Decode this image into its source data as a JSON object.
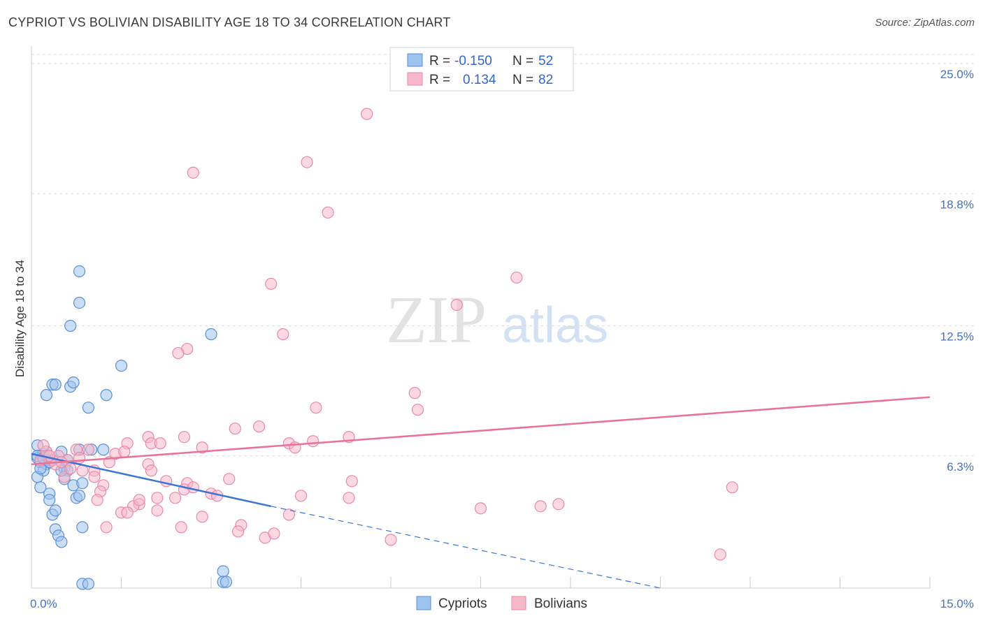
{
  "title": "CYPRIOT VS BOLIVIAN DISABILITY AGE 18 TO 34 CORRELATION CHART",
  "source": "Source: ZipAtlas.com",
  "watermark": {
    "zip": "ZIP",
    "atlas": "atlas"
  },
  "legend": {
    "rows": [
      {
        "r_label": "R =",
        "r_value": "-0.150",
        "n_label": "N =",
        "n_value": "52",
        "color": "#9ec3ee",
        "stroke": "#5b8fd6"
      },
      {
        "r_label": "R =",
        "r_value": "0.134",
        "n_label": "N =",
        "n_value": "82",
        "color": "#f7b8cb",
        "stroke": "#e88aa6"
      }
    ]
  },
  "bottom_legend": [
    {
      "label": "Cypriots",
      "color": "#9ec3ee",
      "stroke": "#5b8fd6"
    },
    {
      "label": "Bolivians",
      "color": "#f7b8cb",
      "stroke": "#e88aa6"
    }
  ],
  "chart_data": {
    "type": "scatter",
    "title": "CYPRIOT VS BOLIVIAN DISABILITY AGE 18 TO 34 CORRELATION CHART",
    "xlabel": "",
    "ylabel": "Disability Age 18 to 34",
    "xlim": [
      0,
      15
    ],
    "ylim": [
      0,
      25.7
    ],
    "x_tick_labels": [
      {
        "v": 0,
        "label": "0.0%"
      },
      {
        "v": 15,
        "label": "15.0%"
      }
    ],
    "y_tick_labels": [
      {
        "v": 6.3,
        "label": "6.3%"
      },
      {
        "v": 12.5,
        "label": "12.5%"
      },
      {
        "v": 18.8,
        "label": "18.8%"
      },
      {
        "v": 25.0,
        "label": "25.0%"
      }
    ],
    "series": [
      {
        "name": "Cypriots",
        "color": "#9ec3ee",
        "stroke": "#5b8fd6",
        "trend": {
          "x0": 0,
          "y0": 6.4,
          "x1": 4.0,
          "y1": 3.9,
          "dash_to_x": 10.5,
          "dash_to_y": -0.2
        },
        "points": [
          [
            0.1,
            6.8
          ],
          [
            0.1,
            6.2
          ],
          [
            0.15,
            6.0
          ],
          [
            0.2,
            6.4
          ],
          [
            0.3,
            6.1
          ],
          [
            0.25,
            5.9
          ],
          [
            0.2,
            5.6
          ],
          [
            0.1,
            5.3
          ],
          [
            0.15,
            4.8
          ],
          [
            0.3,
            4.5
          ],
          [
            0.3,
            4.2
          ],
          [
            0.35,
            3.5
          ],
          [
            0.4,
            3.7
          ],
          [
            0.4,
            2.8
          ],
          [
            0.45,
            2.5
          ],
          [
            0.5,
            2.2
          ],
          [
            0.5,
            6.5
          ],
          [
            0.55,
            5.7
          ],
          [
            0.6,
            5.6
          ],
          [
            0.55,
            5.2
          ],
          [
            0.6,
            6.1
          ],
          [
            0.8,
            6.6
          ],
          [
            0.7,
            4.9
          ],
          [
            0.75,
            4.3
          ],
          [
            0.8,
            4.4
          ],
          [
            0.85,
            5.0
          ],
          [
            1.0,
            6.6
          ],
          [
            0.85,
            2.9
          ],
          [
            1.2,
            6.6
          ],
          [
            0.8,
            13.6
          ],
          [
            0.8,
            15.1
          ],
          [
            0.65,
            12.5
          ],
          [
            0.65,
            9.6
          ],
          [
            0.7,
            9.8
          ],
          [
            0.35,
            9.7
          ],
          [
            0.4,
            9.7
          ],
          [
            0.25,
            9.2
          ],
          [
            1.25,
            9.2
          ],
          [
            0.95,
            8.6
          ],
          [
            1.5,
            10.6
          ],
          [
            3.0,
            12.1
          ],
          [
            3.2,
            0.8
          ],
          [
            3.2,
            0.3
          ],
          [
            3.25,
            0.3
          ],
          [
            0.85,
            0.2
          ],
          [
            0.95,
            0.2
          ],
          [
            0.1,
            6.3
          ],
          [
            0.2,
            6.2
          ],
          [
            0.3,
            6.0
          ],
          [
            0.15,
            5.7
          ],
          [
            0.5,
            5.6
          ],
          [
            0.25,
            6.5
          ]
        ]
      },
      {
        "name": "Bolivians",
        "color": "#f7b8cb",
        "stroke": "#e88aa6",
        "trend": {
          "x0": 0,
          "y0": 5.9,
          "x1": 15.0,
          "y1": 9.1
        },
        "points": [
          [
            5.6,
            22.6
          ],
          [
            4.6,
            20.3
          ],
          [
            2.7,
            19.8
          ],
          [
            4.95,
            17.9
          ],
          [
            8.1,
            14.8
          ],
          [
            4.0,
            14.5
          ],
          [
            7.1,
            13.5
          ],
          [
            4.2,
            12.1
          ],
          [
            2.6,
            11.4
          ],
          [
            2.45,
            11.2
          ],
          [
            6.4,
            9.3
          ],
          [
            6.45,
            8.5
          ],
          [
            4.75,
            8.6
          ],
          [
            3.4,
            7.6
          ],
          [
            3.8,
            7.7
          ],
          [
            5.3,
            7.2
          ],
          [
            2.55,
            7.2
          ],
          [
            1.95,
            7.2
          ],
          [
            1.6,
            6.9
          ],
          [
            2.0,
            6.9
          ],
          [
            2.15,
            6.9
          ],
          [
            2.85,
            6.7
          ],
          [
            4.3,
            6.9
          ],
          [
            4.4,
            6.7
          ],
          [
            4.7,
            7.0
          ],
          [
            1.4,
            6.4
          ],
          [
            1.55,
            6.5
          ],
          [
            0.95,
            6.6
          ],
          [
            0.75,
            6.6
          ],
          [
            0.8,
            6.2
          ],
          [
            0.6,
            6.1
          ],
          [
            0.45,
            6.3
          ],
          [
            0.35,
            6.1
          ],
          [
            0.25,
            6.5
          ],
          [
            0.2,
            6.8
          ],
          [
            1.3,
            6.0
          ],
          [
            1.95,
            5.9
          ],
          [
            1.05,
            5.6
          ],
          [
            0.85,
            5.6
          ],
          [
            1.05,
            5.3
          ],
          [
            0.55,
            5.3
          ],
          [
            2.0,
            5.6
          ],
          [
            2.25,
            5.1
          ],
          [
            2.6,
            5.0
          ],
          [
            3.3,
            5.2
          ],
          [
            5.35,
            5.1
          ],
          [
            2.55,
            4.7
          ],
          [
            2.7,
            4.8
          ],
          [
            3.0,
            4.5
          ],
          [
            3.1,
            4.4
          ],
          [
            1.2,
            4.9
          ],
          [
            1.15,
            4.6
          ],
          [
            2.1,
            4.3
          ],
          [
            2.4,
            4.3
          ],
          [
            1.8,
            4.0
          ],
          [
            1.7,
            3.9
          ],
          [
            1.5,
            3.6
          ],
          [
            1.6,
            3.6
          ],
          [
            2.1,
            3.7
          ],
          [
            2.85,
            3.4
          ],
          [
            3.5,
            3.0
          ],
          [
            3.45,
            2.7
          ],
          [
            3.9,
            2.4
          ],
          [
            4.05,
            2.6
          ],
          [
            4.3,
            3.5
          ],
          [
            4.5,
            4.4
          ],
          [
            5.3,
            4.3
          ],
          [
            7.5,
            3.8
          ],
          [
            8.5,
            3.9
          ],
          [
            8.8,
            4.0
          ],
          [
            11.7,
            4.8
          ],
          [
            11.5,
            1.6
          ],
          [
            6.0,
            2.3
          ],
          [
            2.5,
            2.9
          ],
          [
            1.25,
            2.9
          ],
          [
            0.65,
            5.7
          ],
          [
            1.1,
            4.2
          ],
          [
            1.8,
            4.2
          ],
          [
            0.4,
            5.9
          ],
          [
            0.3,
            6.3
          ],
          [
            0.15,
            6.1
          ],
          [
            0.5,
            6.0
          ]
        ]
      }
    ]
  }
}
